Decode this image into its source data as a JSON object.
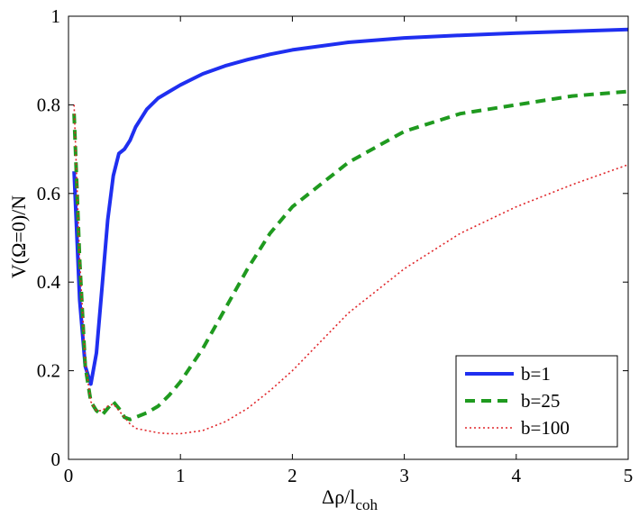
{
  "chart_data": {
    "type": "line",
    "xlabel": {
      "main": "Δρ/l",
      "sub": "coh"
    },
    "ylabel": "V(Ω=0)/N",
    "xlim": [
      0,
      5
    ],
    "ylim": [
      0,
      1
    ],
    "xticks": [
      0,
      1,
      2,
      3,
      4,
      5
    ],
    "yticks": [
      0,
      0.2,
      0.4,
      0.6,
      0.8,
      1
    ],
    "xtick_labels": [
      "0",
      "1",
      "2",
      "3",
      "4",
      "5"
    ],
    "ytick_labels": [
      "0",
      "0.2",
      "0.4",
      "0.6",
      "0.8",
      "1"
    ],
    "grid": false,
    "legend_position": "bottom-right",
    "series": [
      {
        "name": "b=1",
        "color": "#1f2ff0",
        "style": "solid",
        "x": [
          0.05,
          0.1,
          0.15,
          0.2,
          0.25,
          0.3,
          0.35,
          0.4,
          0.45,
          0.5,
          0.55,
          0.6,
          0.65,
          0.7,
          0.8,
          0.9,
          1.0,
          1.2,
          1.4,
          1.6,
          1.8,
          2.0,
          2.5,
          3.0,
          3.5,
          4.0,
          4.5,
          5.0
        ],
        "y": [
          0.65,
          0.36,
          0.21,
          0.17,
          0.24,
          0.39,
          0.54,
          0.64,
          0.69,
          0.7,
          0.72,
          0.75,
          0.77,
          0.79,
          0.815,
          0.83,
          0.845,
          0.87,
          0.888,
          0.902,
          0.914,
          0.924,
          0.941,
          0.951,
          0.957,
          0.962,
          0.966,
          0.97
        ]
      },
      {
        "name": "b=25",
        "color": "#1f9a1f",
        "style": "dashed",
        "x": [
          0.05,
          0.1,
          0.15,
          0.2,
          0.25,
          0.3,
          0.35,
          0.4,
          0.45,
          0.5,
          0.55,
          0.6,
          0.7,
          0.8,
          0.9,
          1.0,
          1.2,
          1.4,
          1.6,
          1.8,
          2.0,
          2.5,
          3.0,
          3.5,
          4.0,
          4.5,
          5.0
        ],
        "y": [
          0.78,
          0.45,
          0.21,
          0.13,
          0.11,
          0.1,
          0.115,
          0.13,
          0.115,
          0.095,
          0.09,
          0.095,
          0.105,
          0.12,
          0.145,
          0.175,
          0.25,
          0.34,
          0.43,
          0.51,
          0.57,
          0.67,
          0.74,
          0.78,
          0.8,
          0.82,
          0.83
        ]
      },
      {
        "name": "b=100",
        "color": "#e0262a",
        "style": "dotted",
        "x": [
          0.05,
          0.1,
          0.15,
          0.2,
          0.25,
          0.3,
          0.35,
          0.4,
          0.45,
          0.5,
          0.55,
          0.6,
          0.7,
          0.8,
          0.9,
          1.0,
          1.2,
          1.4,
          1.6,
          1.8,
          2.0,
          2.5,
          3.0,
          3.5,
          4.0,
          4.5,
          5.0
        ],
        "y": [
          0.8,
          0.45,
          0.22,
          0.13,
          0.11,
          0.11,
          0.12,
          0.125,
          0.11,
          0.095,
          0.08,
          0.07,
          0.065,
          0.06,
          0.058,
          0.058,
          0.065,
          0.085,
          0.115,
          0.155,
          0.2,
          0.33,
          0.43,
          0.51,
          0.57,
          0.62,
          0.665
        ]
      }
    ]
  }
}
